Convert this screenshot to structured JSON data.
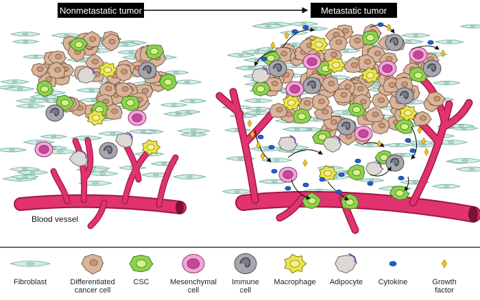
{
  "header": {
    "left_title": "Nonmetastatic tumor",
    "right_title": "Metastatic tumor"
  },
  "labels": {
    "blood_vessel": "Blood vessel"
  },
  "legend": {
    "items": [
      {
        "key": "fibroblast",
        "lines": [
          "Fibroblast"
        ]
      },
      {
        "key": "differentiated",
        "lines": [
          "Differentiated",
          "cancer cell"
        ]
      },
      {
        "key": "csc",
        "lines": [
          "CSC"
        ]
      },
      {
        "key": "mesenchymal",
        "lines": [
          "Mesenchymal",
          "cell"
        ]
      },
      {
        "key": "immune",
        "lines": [
          "Immune",
          "cell"
        ]
      },
      {
        "key": "macrophage",
        "lines": [
          "Macrophage"
        ]
      },
      {
        "key": "adipocyte",
        "lines": [
          "Adipocyte"
        ]
      },
      {
        "key": "cytokine",
        "lines": [
          "Cytokine"
        ]
      },
      {
        "key": "growth_factor",
        "lines": [
          "Growth",
          "factor"
        ]
      }
    ]
  },
  "colors": {
    "vessel": "#e0336f",
    "vessel_dark": "#9c1746",
    "tan": "#d9b49a",
    "csc": "#8fd14f",
    "mesenchymal": "#f2a6d8",
    "immune": "#a6a6ae",
    "macrophage": "#ece44c",
    "adipocyte": "#dcd8d2",
    "cytokine": "#1f5fd0",
    "growth_factor": "#f5c21a",
    "fibroblast": "#d2ece6"
  }
}
